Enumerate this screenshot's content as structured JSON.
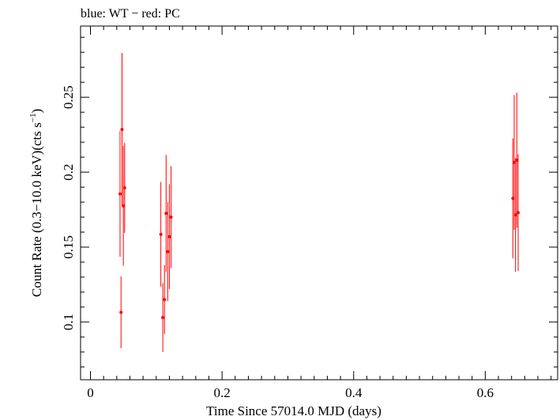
{
  "header": {
    "label": "blue: WT − red: PC"
  },
  "chart_data": {
    "type": "scatter",
    "title": "",
    "xlabel": "Time Since 57014.0 MJD (days)",
    "ylabel_main": "Count Rate (0.3−10.0 keV)(cts s",
    "ylabel_sup": "−1",
    "ylabel_close": ")",
    "xlim": [
      -0.015,
      0.71
    ],
    "ylim": [
      0.0615,
      0.2975
    ],
    "x_ticks": [
      {
        "value": 0,
        "label": "0"
      },
      {
        "value": 0.2,
        "label": "0.2"
      },
      {
        "value": 0.4,
        "label": "0.4"
      },
      {
        "value": 0.6,
        "label": "0.6"
      }
    ],
    "y_ticks": [
      {
        "value": 0.1,
        "label": "0.1"
      },
      {
        "value": 0.15,
        "label": "0.15"
      },
      {
        "value": 0.2,
        "label": "0.2"
      },
      {
        "value": 0.25,
        "label": "0.25"
      }
    ],
    "x_minor_step": 0.02,
    "y_minor_step": 0.01,
    "series": [
      {
        "color": "#ff0000",
        "points": [
          {
            "x": 0.045,
            "y": 0.1855,
            "err": 0.042
          },
          {
            "x": 0.0465,
            "y": 0.1065,
            "err": 0.024
          },
          {
            "x": 0.048,
            "y": 0.2285,
            "err": 0.051
          },
          {
            "x": 0.05,
            "y": 0.1775,
            "err": 0.04
          },
          {
            "x": 0.052,
            "y": 0.1895,
            "err": 0.03
          },
          {
            "x": 0.107,
            "y": 0.1585,
            "err": 0.035
          },
          {
            "x": 0.11,
            "y": 0.103,
            "err": 0.023
          },
          {
            "x": 0.1125,
            "y": 0.115,
            "err": 0.023
          },
          {
            "x": 0.115,
            "y": 0.1725,
            "err": 0.039
          },
          {
            "x": 0.1175,
            "y": 0.147,
            "err": 0.033
          },
          {
            "x": 0.12,
            "y": 0.157,
            "err": 0.035
          },
          {
            "x": 0.1225,
            "y": 0.17,
            "err": 0.034
          },
          {
            "x": 0.642,
            "y": 0.1825,
            "err": 0.04
          },
          {
            "x": 0.644,
            "y": 0.2065,
            "err": 0.045
          },
          {
            "x": 0.646,
            "y": 0.1715,
            "err": 0.038
          },
          {
            "x": 0.648,
            "y": 0.208,
            "err": 0.045
          },
          {
            "x": 0.65,
            "y": 0.173,
            "err": 0.039
          }
        ]
      }
    ]
  }
}
